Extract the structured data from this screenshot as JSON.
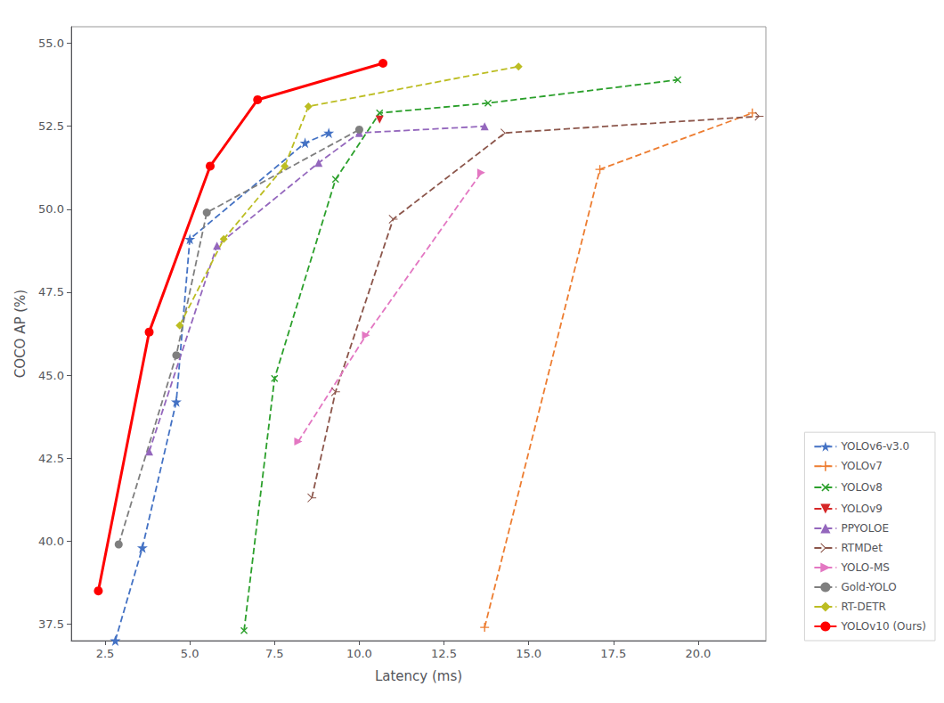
{
  "chart_data": {
    "type": "line",
    "xlabel": "Latency (ms)",
    "ylabel": "COCO AP (%)",
    "xlim": [
      1.5,
      22.0
    ],
    "ylim": [
      37.0,
      55.5
    ],
    "xticks": [
      2.5,
      {
        "value": 5,
        "label": "5.0"
      },
      7.5,
      {
        "value": 10,
        "label": "10.0"
      },
      12.5,
      {
        "value": 15,
        "label": "15.0"
      },
      17.5,
      {
        "value": 20,
        "label": "20.0"
      }
    ],
    "yticks": [
      37.5,
      {
        "value": 40,
        "label": "40.0"
      },
      42.5,
      {
        "value": 45,
        "label": "45.0"
      },
      47.5,
      {
        "value": 50,
        "label": "50.0"
      },
      52.5,
      {
        "value": 55,
        "label": "55.0"
      }
    ],
    "grid": false,
    "legend": "lower right",
    "series": [
      {
        "name": "YOLOv6-v3.0",
        "color": "#4472C4",
        "line_style": "dashed",
        "marker": "star",
        "x": [
          2.8,
          3.6,
          4.6,
          5.0,
          8.4,
          9.1
        ],
        "values": [
          37.0,
          39.8,
          44.2,
          49.1,
          52.0,
          52.3
        ]
      },
      {
        "name": "YOLOv7",
        "color": "#ED7D31",
        "line_style": "dashed",
        "marker": "plus",
        "x": [
          13.7,
          17.1,
          21.6
        ],
        "values": [
          37.4,
          51.2,
          52.9
        ]
      },
      {
        "name": "YOLOv8",
        "color": "#2CA02C",
        "line_style": "dashed",
        "marker": "x",
        "x": [
          6.6,
          7.5,
          9.3,
          10.6,
          13.8,
          19.4
        ],
        "values": [
          37.3,
          44.9,
          50.9,
          52.9,
          53.2,
          53.9
        ]
      },
      {
        "name": "YOLOv9",
        "color": "#D62728",
        "line_style": "dashed",
        "marker": "triangle_down",
        "x": [
          10.6
        ],
        "values": [
          52.7
        ]
      },
      {
        "name": "PPYOLOE",
        "color": "#9467BD",
        "line_style": "dashed",
        "marker": "triangle_up",
        "x": [
          3.8,
          5.8,
          8.8,
          10.0,
          13.7
        ],
        "values": [
          42.7,
          48.9,
          51.4,
          52.3,
          52.5
        ]
      },
      {
        "name": "RTMDet",
        "color": "#8C564B",
        "line_style": "dashed",
        "marker": "tri_right",
        "x": [
          8.6,
          9.3,
          11.0,
          14.3,
          21.8
        ],
        "values": [
          41.3,
          44.5,
          49.7,
          52.3,
          52.8
        ]
      },
      {
        "name": "YOLO-MS",
        "color": "#E377C2",
        "line_style": "dashed",
        "marker": "triangle_right",
        "x": [
          8.2,
          10.2,
          13.6
        ],
        "values": [
          43.0,
          46.2,
          51.1
        ]
      },
      {
        "name": "Gold-YOLO",
        "color": "#7F7F7F",
        "line_style": "dashed",
        "marker": "circle",
        "x": [
          2.9,
          4.6,
          5.5,
          10.0
        ],
        "values": [
          39.9,
          45.6,
          49.9,
          52.4
        ]
      },
      {
        "name": "RT-DETR",
        "color": "#BCBD22",
        "line_style": "dashed",
        "marker": "diamond",
        "x": [
          4.7,
          6.0,
          7.8,
          8.5,
          14.7
        ],
        "values": [
          46.5,
          49.1,
          51.3,
          53.1,
          54.3
        ]
      },
      {
        "name": "YOLOv10 (Ours)",
        "color": "#FF0000",
        "line_style": "solid",
        "marker": "circle",
        "x": [
          2.3,
          3.8,
          5.6,
          7.0,
          10.7
        ],
        "values": [
          38.5,
          46.3,
          51.3,
          53.3,
          54.4
        ]
      }
    ]
  }
}
